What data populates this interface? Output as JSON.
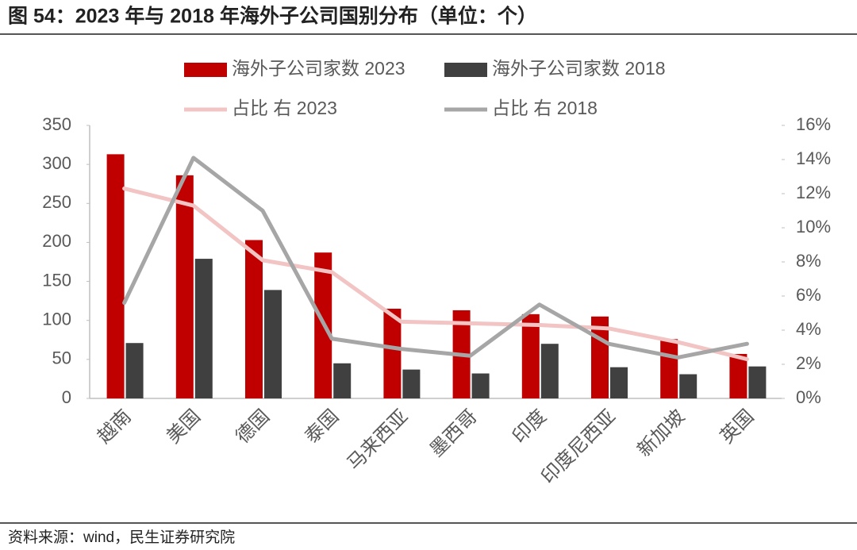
{
  "title": "图 54：2023 年与 2018 年海外子公司国别分布（单位：个）",
  "source": "资料来源：wind，民生证券研究院",
  "chart_data": {
    "type": "bar-line",
    "categories": [
      "越南",
      "美国",
      "德国",
      "泰国",
      "马来西亚",
      "墨西哥",
      "印度",
      "印度尼西亚",
      "新加坡",
      "英国"
    ],
    "series": [
      {
        "name": "海外子公司家数 2023",
        "type": "bar",
        "color": "#c00000",
        "values": [
          313,
          286,
          203,
          187,
          115,
          113,
          108,
          105,
          76,
          57
        ]
      },
      {
        "name": "海外子公司家数 2018",
        "type": "bar",
        "color": "#404040",
        "values": [
          71,
          179,
          139,
          45,
          37,
          32,
          70,
          40,
          31,
          41
        ]
      },
      {
        "name": "占比 右 2023",
        "type": "line",
        "axis": "y2",
        "color": "#f2c4c4",
        "values": [
          12.3,
          11.3,
          8.1,
          7.4,
          4.5,
          4.4,
          4.3,
          4.1,
          3.3,
          2.3
        ]
      },
      {
        "name": "占比 右 2018",
        "type": "line",
        "axis": "y2",
        "color": "#a6a6a6",
        "values": [
          5.6,
          14.1,
          11.0,
          3.5,
          2.9,
          2.5,
          5.5,
          3.2,
          2.4,
          3.2
        ]
      }
    ],
    "ylim": [
      0,
      350
    ],
    "yticks": [
      0,
      50,
      100,
      150,
      200,
      250,
      300,
      350
    ],
    "y2lim": [
      0,
      16
    ],
    "y2ticks": [
      {
        "value": 0,
        "label": "0%"
      },
      {
        "value": 2,
        "label": "2%"
      },
      {
        "value": 4,
        "label": "4%"
      },
      {
        "value": 6,
        "label": "6%"
      },
      {
        "value": 8,
        "label": "8%"
      },
      {
        "value": 10,
        "label": "10%"
      },
      {
        "value": 12,
        "label": "12%"
      },
      {
        "value": 14,
        "label": "14%"
      },
      {
        "value": 16,
        "label": "16%"
      }
    ],
    "grid": false,
    "legend": "top"
  }
}
